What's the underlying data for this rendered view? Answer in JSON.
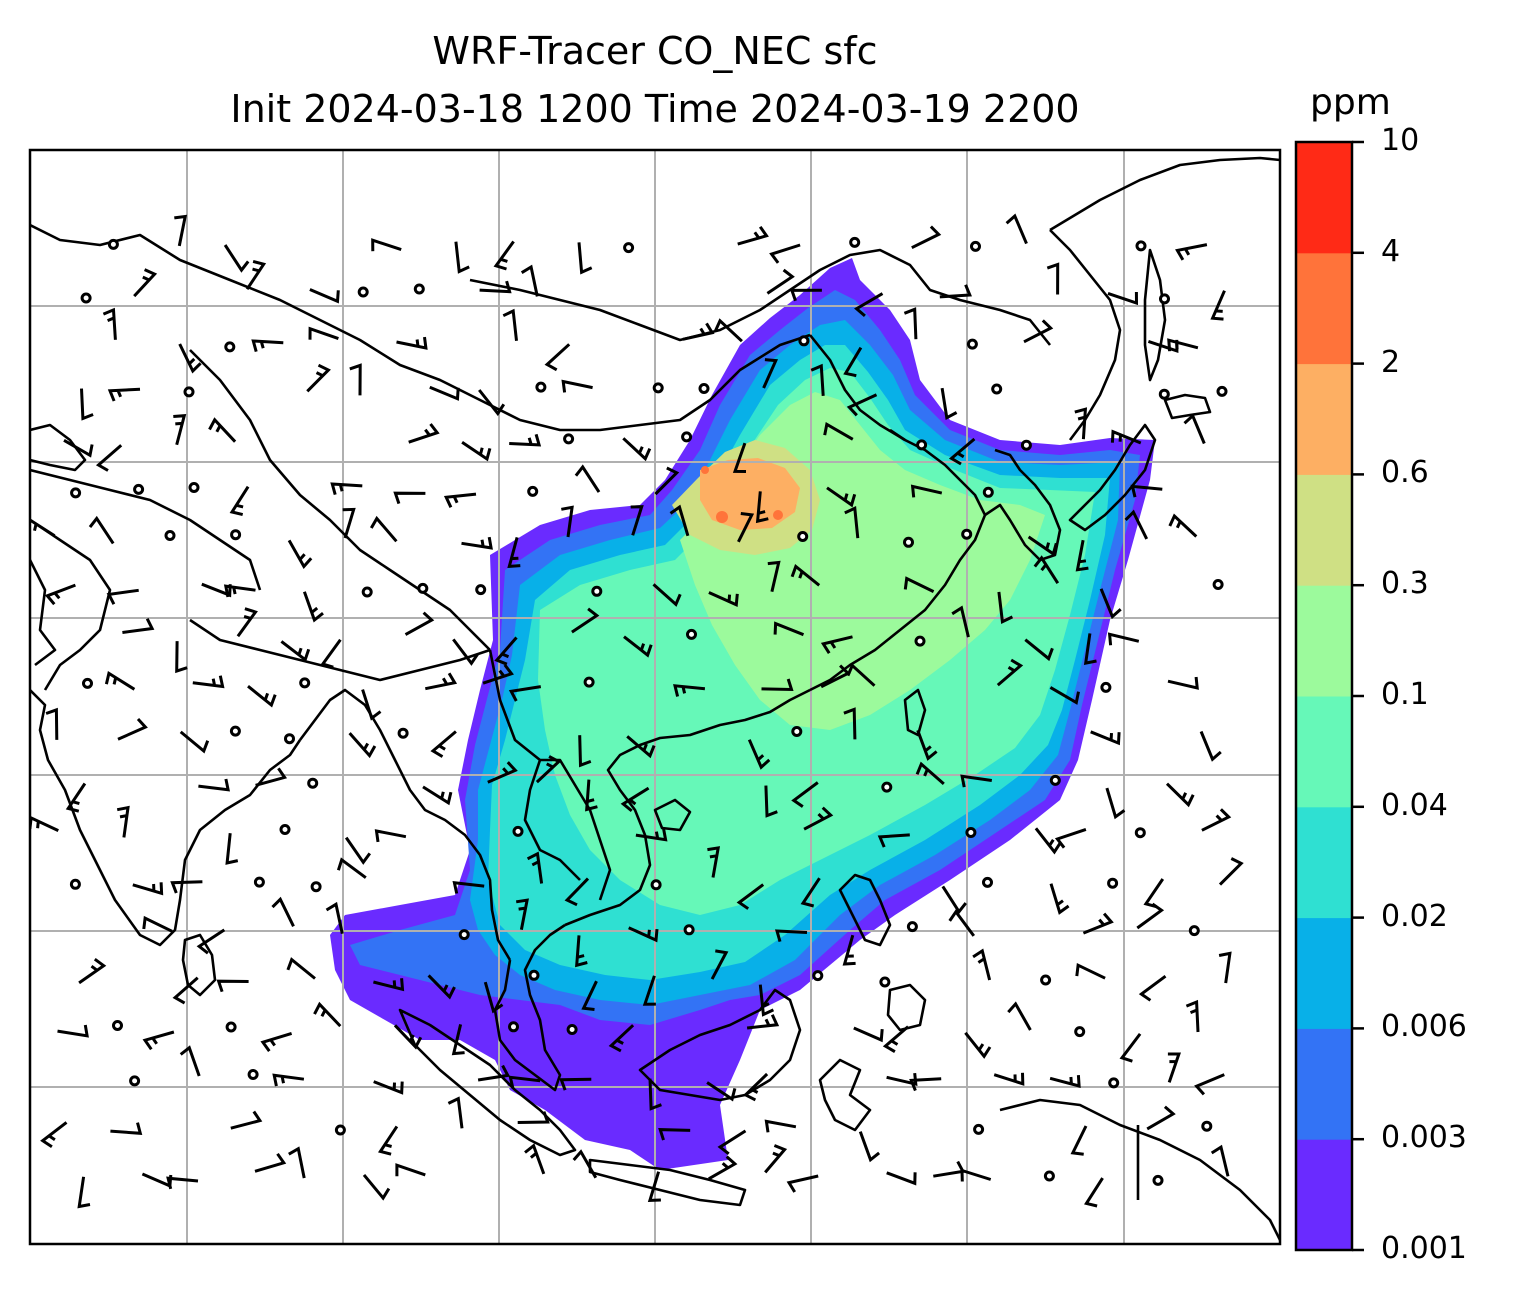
{
  "title": {
    "line1": "WRF-Tracer CO_NEC sfc",
    "line2": "Init 2024-03-18 1200 Time 2024-03-19 2200"
  },
  "colorbar": {
    "unit": "ppm",
    "levels": [
      "0.001",
      "0.003",
      "0.006",
      "0.02",
      "0.04",
      "0.1",
      "0.3",
      "0.6",
      "2",
      "4",
      "10"
    ],
    "colors": [
      "#6a2bff",
      "#3373f5",
      "#08b0e8",
      "#2fe0d2",
      "#66f8b8",
      "#9cfa9c",
      "#cfe084",
      "#fdaf63",
      "#ff733a",
      "#ff2a16"
    ]
  },
  "map": {
    "gridlines": true,
    "gridline_color": "#b0b0b0",
    "coastline_color": "#000000",
    "features": [
      "coastlines",
      "country-borders",
      "wind-barbs",
      "calm-circles",
      "tracer-contours"
    ]
  }
}
